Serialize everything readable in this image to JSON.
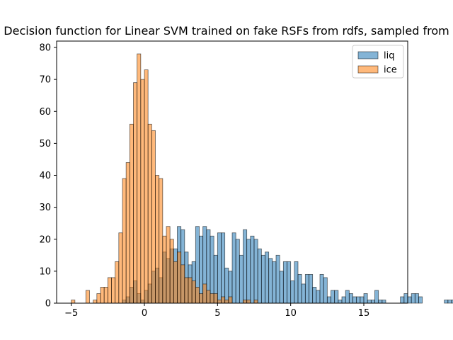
{
  "chart_data": {
    "type": "histogram",
    "title": "Decision function for Linear SVM trained on fake RSFs from rdfs, sampled from",
    "xlabel": "",
    "ylabel": "",
    "xlim": [
      -6.0,
      18.0
    ],
    "ylim": [
      0,
      82
    ],
    "xticks": [
      -5,
      0,
      5,
      10,
      15
    ],
    "xtick_labels": [
      "−5",
      "0",
      "5",
      "10",
      "15"
    ],
    "yticks": [
      0,
      10,
      20,
      30,
      40,
      50,
      60,
      70,
      80
    ],
    "ytick_labels": [
      "0",
      "10",
      "20",
      "30",
      "40",
      "50",
      "60",
      "70",
      "80"
    ],
    "grid": false,
    "legend_position": "top-right",
    "bin_width": 0.25,
    "series": [
      {
        "name": "liq",
        "color": "#1f77b4",
        "bin_start": -1.5,
        "counts": [
          1,
          2,
          5,
          7,
          3,
          1,
          4,
          6,
          10,
          11,
          8,
          16,
          14,
          17,
          17,
          24,
          23,
          16,
          12,
          13,
          24,
          21,
          24,
          23,
          21,
          15,
          22,
          22,
          11,
          10,
          22,
          20,
          15,
          23,
          20,
          21,
          20,
          17,
          15,
          16,
          14,
          13,
          15,
          10,
          13,
          13,
          7,
          13,
          9,
          6,
          9,
          9,
          5,
          4,
          9,
          8,
          2,
          4,
          4,
          1,
          2,
          4,
          3,
          2,
          2,
          2,
          3,
          1,
          1,
          4,
          1,
          1,
          0,
          0,
          0,
          0,
          2,
          3,
          2,
          3,
          3,
          2,
          0,
          0,
          0,
          0,
          0,
          0,
          1,
          1,
          1,
          0,
          0,
          2
        ]
      },
      {
        "name": "ice",
        "color": "#ff7f0e",
        "bin_start": -5.0,
        "counts": [
          1,
          0,
          0,
          0,
          4,
          0,
          1,
          3,
          5,
          5,
          8,
          8,
          13,
          22,
          39,
          44,
          56,
          69,
          78,
          70,
          73,
          56,
          54,
          40,
          39,
          21,
          24,
          20,
          13,
          16,
          12,
          8,
          8,
          7,
          5,
          3,
          6,
          4,
          3,
          3,
          1,
          2,
          1,
          2,
          0,
          0,
          0,
          1,
          1,
          0,
          1
        ]
      }
    ]
  }
}
